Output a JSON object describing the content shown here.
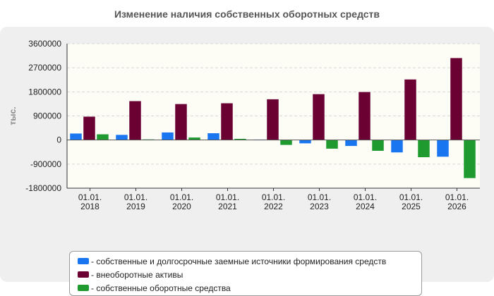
{
  "title": "Изменение наличия собственных оборотных средств",
  "legend_sep": "- ",
  "chart_data": {
    "type": "bar",
    "title": "Изменение наличия собственных оборотных средств",
    "ylabel": "тыс.",
    "xlabel": "",
    "ylim": [
      -1800000,
      3600000
    ],
    "yticks": [
      3600000,
      2700000,
      1800000,
      900000,
      0,
      -900000,
      -1800000
    ],
    "categories": [
      [
        "01.01.",
        "2018"
      ],
      [
        "01.01.",
        "2019"
      ],
      [
        "01.01.",
        "2020"
      ],
      [
        "01.01.",
        "2021"
      ],
      [
        "01.01.",
        "2022"
      ],
      [
        "01.01.",
        "2023"
      ],
      [
        "01.01.",
        "2024"
      ],
      [
        "01.01.",
        "2025"
      ],
      [
        "01.01.",
        "2026"
      ]
    ],
    "grid": true,
    "legend_position": "bottom",
    "series": [
      {
        "name": "собственные и долгосрочные заемные источники формирования средств",
        "color": "#1a75f0",
        "values": [
          250000,
          200000,
          290000,
          260000,
          20000,
          -130000,
          -230000,
          -470000,
          -630000
        ]
      },
      {
        "name": "внеоборотные активы",
        "color": "#6b0032",
        "values": [
          880000,
          1460000,
          1350000,
          1380000,
          1530000,
          1720000,
          1800000,
          2270000,
          3070000
        ]
      },
      {
        "name": "собственные оборотные средства",
        "color": "#1e9a2e",
        "values": [
          220000,
          30000,
          100000,
          50000,
          -190000,
          -330000,
          -410000,
          -650000,
          -1430000
        ]
      }
    ]
  }
}
